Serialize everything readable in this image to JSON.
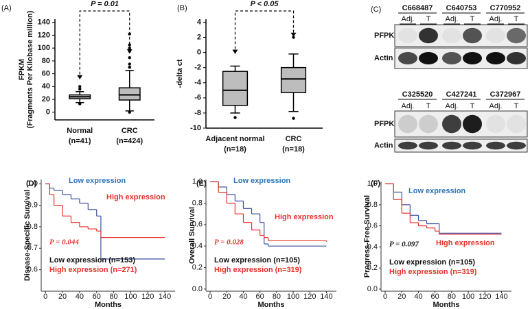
{
  "chart_data": [
    {
      "type": "box",
      "panel": "(A)",
      "ylabel": "FPKM",
      "ylabel2": "(Fragments Per Kilobase million)",
      "annotation": "P = 0.01",
      "categories": [
        "Normal",
        "CRC"
      ],
      "category_counts": [
        "(n=41)",
        "(n=424)"
      ],
      "boxes": [
        {
          "min": 15,
          "q1": 21,
          "median": 24,
          "q3": 27,
          "max": 32,
          "outliers": [
            13,
            36,
            40
          ]
        },
        {
          "min": 2,
          "q1": 19,
          "median": 27,
          "q3": 38,
          "max": 65,
          "outliers": [
            0,
            70,
            75,
            85,
            95,
            100,
            105,
            122
          ]
        }
      ],
      "ylim": [
        -12,
        145
      ],
      "yticks": [
        0,
        20,
        40,
        60,
        80,
        100,
        120,
        140
      ]
    },
    {
      "type": "box",
      "panel": "(B)",
      "ylabel": "-delta ct",
      "annotation": "P < 0.05",
      "categories": [
        "Adjacent normal",
        "CRC"
      ],
      "category_counts": [
        "(n=18)",
        "(n=18)"
      ],
      "boxes": [
        {
          "min": -8,
          "q1": -7,
          "median": -5,
          "q3": -2.5,
          "max": -1.8,
          "outliers": [
            -8.6
          ]
        },
        {
          "min": -7.8,
          "q1": -5.3,
          "median": -3.5,
          "q3": -2,
          "max": -0.2,
          "outliers": [
            -8.7,
            2
          ]
        }
      ],
      "ylim": [
        -10,
        4.4
      ],
      "yticks": [
        -10,
        -8,
        -6,
        -4,
        -2,
        0,
        2,
        4
      ]
    },
    {
      "type": "line",
      "panel": "(D)",
      "ylabel": "Disease-Specific Survival",
      "xlabel": "Months",
      "annotation": "P = 0.044",
      "annotation_color": "#e8302a",
      "notes": [
        "Low expression (n=153)",
        "High expression (n=271)"
      ],
      "x": [
        0,
        5,
        10,
        20,
        30,
        40,
        50,
        60,
        65,
        140
      ],
      "series": [
        {
          "name": "Low expression",
          "color": "#3c4fa0",
          "values": [
            1,
            0.98,
            0.97,
            0.95,
            0.93,
            0.91,
            0.88,
            0.85,
            0.65,
            0.65
          ]
        },
        {
          "name": "High expression",
          "color": "#e8302a",
          "values": [
            1,
            0.95,
            0.9,
            0.85,
            0.82,
            0.8,
            0.79,
            0.78,
            0.75,
            0.75
          ]
        }
      ],
      "xlim": [
        -5,
        152
      ],
      "xticks": [
        0,
        20,
        40,
        60,
        80,
        100,
        120,
        140
      ],
      "ylim": [
        0.5,
        1.02
      ],
      "yticks": [
        {
          "value": 0.6,
          "label": "0.6"
        },
        {
          "value": 0.7,
          "label": "0.7"
        },
        {
          "value": 0.8,
          "label": "0.8"
        },
        {
          "value": 0.9,
          "label": "0.9"
        },
        {
          "value": 1,
          "label": "1.0"
        }
      ]
    },
    {
      "type": "line",
      "panel": "(E)",
      "ylabel": "Overall Survival",
      "xlabel": "Months",
      "annotation": "P = 0.028",
      "annotation_color": "#e8302a",
      "notes": [
        "Low expression (n=105)",
        "High expression (n=319)"
      ],
      "x": [
        0,
        10,
        20,
        30,
        40,
        50,
        60,
        65,
        70,
        140
      ],
      "series": [
        {
          "name": "Low expression",
          "color": "#3c4fa0",
          "values": [
            1,
            0.95,
            0.88,
            0.82,
            0.75,
            0.7,
            0.62,
            0.42,
            0.4,
            0.4
          ]
        },
        {
          "name": "High expression",
          "color": "#e8302a",
          "values": [
            1,
            0.9,
            0.8,
            0.7,
            0.62,
            0.55,
            0.5,
            0.48,
            0.45,
            0.44
          ]
        }
      ],
      "xlim": [
        -5,
        152
      ],
      "xticks": [
        0,
        20,
        40,
        60,
        80,
        100,
        120,
        140
      ],
      "ylim": [
        -0.02,
        1.02
      ],
      "yticks": [
        {
          "value": 0,
          "label": "0.0"
        },
        {
          "value": 0.2,
          "label": "0.2"
        },
        {
          "value": 0.4,
          "label": "0.4"
        },
        {
          "value": 0.6,
          "label": "0.6"
        },
        {
          "value": 0.8,
          "label": "0.8"
        },
        {
          "value": 1,
          "label": "1.0"
        }
      ]
    },
    {
      "type": "line",
      "panel": "(F)",
      "ylabel": "Progress-Free Survival",
      "xlabel": "Months",
      "annotation": "P = 0.097",
      "annotation_color": "#111111",
      "notes": [
        "Low expression (n=105)",
        "High expression (n=319)"
      ],
      "x": [
        0,
        10,
        20,
        30,
        40,
        50,
        60,
        65,
        70,
        140
      ],
      "series": [
        {
          "name": "Low expression",
          "color": "#3c4fa0",
          "values": [
            1,
            0.92,
            0.8,
            0.7,
            0.65,
            0.62,
            0.62,
            0.53,
            0.53,
            0.53
          ]
        },
        {
          "name": "High expression",
          "color": "#e8302a",
          "values": [
            1,
            0.85,
            0.72,
            0.63,
            0.6,
            0.58,
            0.55,
            0.52,
            0.52,
            0.52
          ]
        }
      ],
      "xlim": [
        -5,
        152
      ],
      "xticks": [
        0,
        20,
        40,
        60,
        80,
        100,
        120,
        140
      ],
      "ylim": [
        -0.02,
        1.02
      ],
      "yticks": [
        {
          "value": 0,
          "label": "0.0"
        },
        {
          "value": 0.2,
          "label": "0.2"
        },
        {
          "value": 0.4,
          "label": "0.4"
        },
        {
          "value": 0.6,
          "label": "0.6"
        },
        {
          "value": 0.8,
          "label": "0.8"
        },
        {
          "value": 1,
          "label": "1.0"
        }
      ]
    }
  ],
  "blot": {
    "panel": "(C)",
    "lanes": [
      "Adj.",
      "T"
    ],
    "rows": [
      "PFPK",
      "Actin"
    ],
    "groups": [
      [
        "C668487",
        "C640753",
        "C770952"
      ],
      [
        "C325520",
        "C427241",
        "C372967"
      ]
    ]
  }
}
